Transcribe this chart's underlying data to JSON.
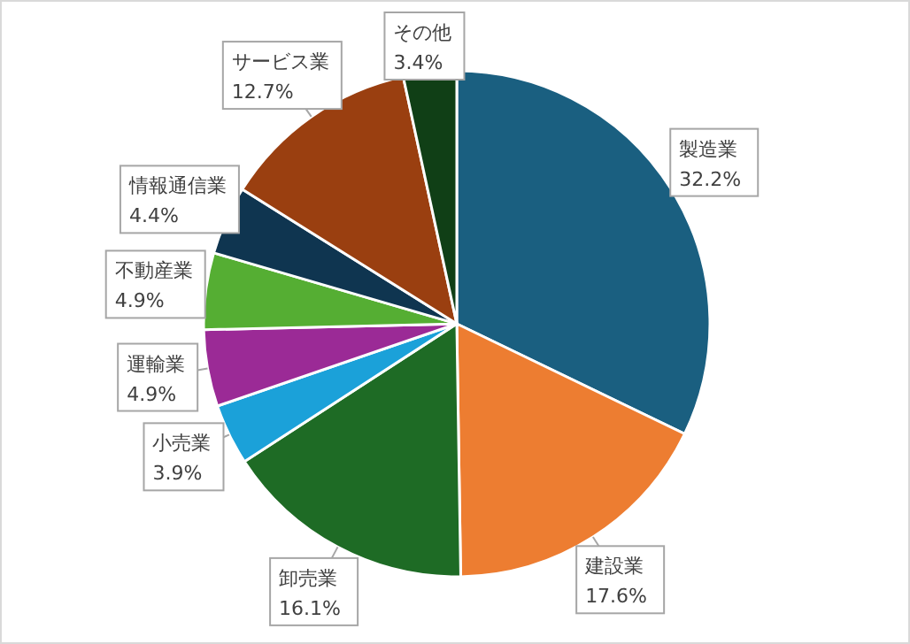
{
  "chart_data": {
    "type": "pie",
    "categories": [
      "製造業",
      "建設業",
      "卸売業",
      "小売業",
      "運輸業",
      "不動産業",
      "情報通信業",
      "サービス業",
      "その他"
    ],
    "values": [
      32.2,
      17.6,
      16.1,
      3.9,
      4.9,
      4.9,
      4.4,
      12.7,
      3.4
    ],
    "value_labels": [
      "32.2%",
      "17.6%",
      "16.1%",
      "3.9%",
      "4.9%",
      "4.9%",
      "4.4%",
      "12.7%",
      "3.4%"
    ],
    "colors": [
      "#1a5f80",
      "#ed7d31",
      "#1e6b25",
      "#1ba1d9",
      "#9b2a96",
      "#55ae33",
      "#0f3550",
      "#9a3f10",
      "#103f16"
    ]
  }
}
